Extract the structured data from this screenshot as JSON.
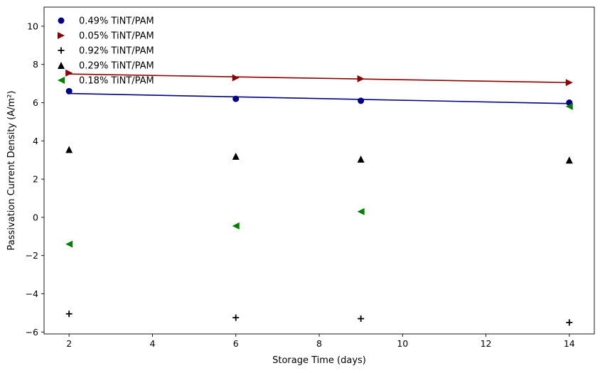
{
  "chart_data": {
    "type": "scatter",
    "title": "",
    "xlabel": "Storage Time (days)",
    "ylabel": "Passivation Current Density (A/m²)",
    "xlim": [
      1.4,
      14.6
    ],
    "ylim": [
      -6.1,
      11.0
    ],
    "x_ticks": [
      2,
      4,
      6,
      8,
      10,
      12,
      14
    ],
    "y_ticks": [
      -6,
      -4,
      -2,
      0,
      2,
      4,
      6,
      8,
      10
    ],
    "x_tick_labels": [
      "2",
      "4",
      "6",
      "8",
      "10",
      "12",
      "14"
    ],
    "y_tick_labels": [
      "−6",
      "−4",
      "−2",
      "0",
      "2",
      "4",
      "6",
      "8",
      "10"
    ],
    "grid": false,
    "legend_position": "top-left",
    "series": [
      {
        "name": "0.49% TiNT/PAM",
        "marker": "circle",
        "color": "#000080",
        "x": [
          2,
          6,
          9,
          14
        ],
        "y": [
          6.6,
          6.2,
          6.1,
          6.0
        ],
        "fit_line": {
          "x": [
            2,
            14
          ],
          "y": [
            6.48,
            5.95
          ]
        }
      },
      {
        "name": "0.05% TiNT/PAM",
        "marker": "triangle-right",
        "color": "#8b0000",
        "x": [
          2,
          6,
          9,
          14
        ],
        "y": [
          7.55,
          7.3,
          7.25,
          7.05
        ],
        "fit_line": {
          "x": [
            2,
            14
          ],
          "y": [
            7.5,
            7.05
          ]
        }
      },
      {
        "name": "0.92% TiNT/PAM",
        "marker": "plus",
        "color": "#000000",
        "x": [
          2,
          6,
          9,
          14
        ],
        "y": [
          -5.05,
          -5.25,
          -5.3,
          -5.5
        ]
      },
      {
        "name": "0.29% TiNT/PAM",
        "marker": "triangle-up",
        "color": "#000000",
        "x": [
          2,
          6,
          9,
          14
        ],
        "y": [
          3.55,
          3.2,
          3.05,
          3.0
        ]
      },
      {
        "name": "0.18% TiNT/PAM",
        "marker": "triangle-left",
        "color": "#008000",
        "x": [
          2,
          6,
          9,
          14
        ],
        "y": [
          -1.4,
          -0.45,
          0.3,
          5.8
        ]
      }
    ]
  }
}
